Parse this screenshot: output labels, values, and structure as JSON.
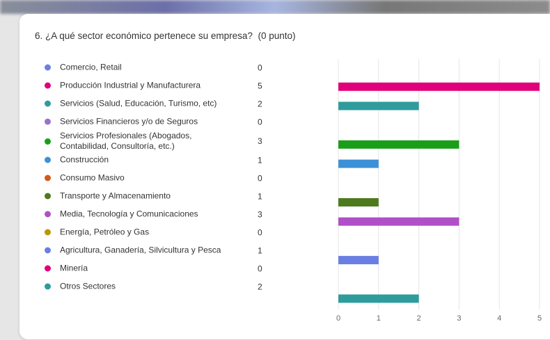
{
  "chart_data": {
    "type": "bar",
    "orientation": "horizontal",
    "title": "6. ¿A qué sector económico pertenece su empresa?",
    "points": "(0 punto)",
    "categories": [
      "Comercio, Retail",
      "Producción Industrial y Manufacturera",
      "Servicios (Salud, Educación, Turismo, etc)",
      "Servicios Financieros y/o de Seguros",
      "Servicios Profesionales (Abogados, Contabilidad, Consultoría, etc.)",
      "Construcción",
      "Consumo Masivo",
      "Transporte y Almacenamiento",
      "Media, Tecnología y Comunicaciones",
      "Energía, Petróleo y Gas",
      "Agricultura, Ganadería, Silvicultura y Pesca",
      "Minería",
      "Otros Sectores"
    ],
    "values": [
      0,
      5,
      2,
      0,
      3,
      1,
      0,
      1,
      3,
      0,
      1,
      0,
      2
    ],
    "colors": [
      "#6b7fe3",
      "#e0007a",
      "#2e9c9c",
      "#9a72c9",
      "#1a9e1a",
      "#3c91d6",
      "#d45a1e",
      "#4e7a1e",
      "#b04fc8",
      "#b89a00",
      "#6b7fe3",
      "#e0007a",
      "#2e9c9c"
    ],
    "xlim": [
      0,
      5
    ],
    "xticks": [
      0,
      1,
      2,
      3,
      4,
      5
    ],
    "grid": true
  }
}
